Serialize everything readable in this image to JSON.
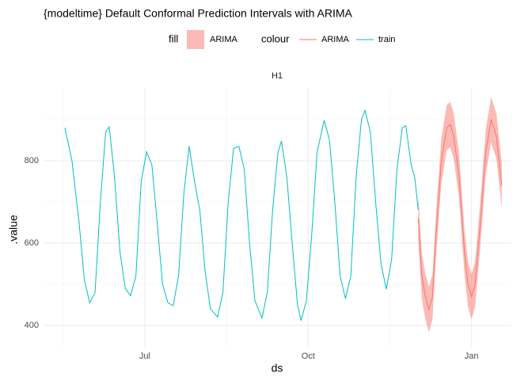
{
  "chart_data": {
    "type": "line",
    "title": "{modeltime} Default Conformal Prediction Intervals with ARIMA",
    "panel": "H1",
    "xlabel": "ds",
    "ylabel": ".value",
    "legend_titles": {
      "fill": "fill",
      "colour": "colour"
    },
    "xlim": [
      -12,
      251
    ],
    "xticks": [
      {
        "value": 45,
        "label": "Jul"
      },
      {
        "value": 137,
        "label": "Oct"
      },
      {
        "value": 229,
        "label": "Jan"
      }
    ],
    "ylim": [
      350,
      975
    ],
    "yticks": [
      400,
      600,
      800
    ],
    "grid": true,
    "series": [
      {
        "name": "train",
        "color": "#00BFC4",
        "x": [
          0,
          4,
          8,
          11,
          14,
          17,
          20,
          23,
          25,
          28,
          31,
          34,
          37,
          40,
          43,
          46,
          49,
          52,
          55,
          58,
          61,
          64,
          67,
          70,
          73,
          76,
          79,
          82,
          86,
          89,
          92,
          95,
          98,
          101,
          104,
          107,
          111,
          114,
          117,
          120,
          122,
          125,
          128,
          131,
          133,
          136,
          139,
          142,
          146,
          149,
          152,
          155,
          158,
          161,
          164,
          167,
          169,
          172,
          175,
          178,
          181,
          184,
          187,
          190,
          192,
          195,
          197,
          199
        ],
        "values": [
          880,
          800,
          650,
          510,
          455,
          480,
          700,
          870,
          882,
          760,
          580,
          490,
          472,
          520,
          750,
          822,
          790,
          650,
          500,
          455,
          448,
          520,
          720,
          835,
          750,
          680,
          530,
          440,
          420,
          480,
          700,
          830,
          835,
          780,
          600,
          460,
          418,
          480,
          680,
          820,
          848,
          760,
          600,
          450,
          412,
          460,
          620,
          820,
          898,
          850,
          700,
          520,
          465,
          520,
          760,
          900,
          922,
          870,
          700,
          550,
          488,
          560,
          780,
          880,
          885,
          790,
          760,
          680
        ]
      },
      {
        "name": "ARIMA",
        "color": "#F8766D",
        "fill_color": "#F8766D",
        "x": [
          199,
          201,
          203,
          205,
          207,
          209,
          212,
          215,
          217,
          219,
          222,
          225,
          227,
          229,
          231,
          234,
          237,
          240,
          243,
          246
        ],
        "values": [
          660,
          520,
          470,
          438,
          470,
          620,
          800,
          880,
          888,
          860,
          760,
          580,
          500,
          470,
          500,
          650,
          820,
          900,
          860,
          740
        ],
        "lower": [
          605,
          465,
          415,
          383,
          415,
          565,
          745,
          825,
          833,
          805,
          705,
          525,
          445,
          415,
          445,
          595,
          765,
          845,
          805,
          685
        ],
        "upper": [
          715,
          575,
          525,
          493,
          525,
          675,
          855,
          935,
          943,
          915,
          815,
          635,
          555,
          525,
          555,
          705,
          875,
          955,
          915,
          795
        ]
      }
    ]
  }
}
